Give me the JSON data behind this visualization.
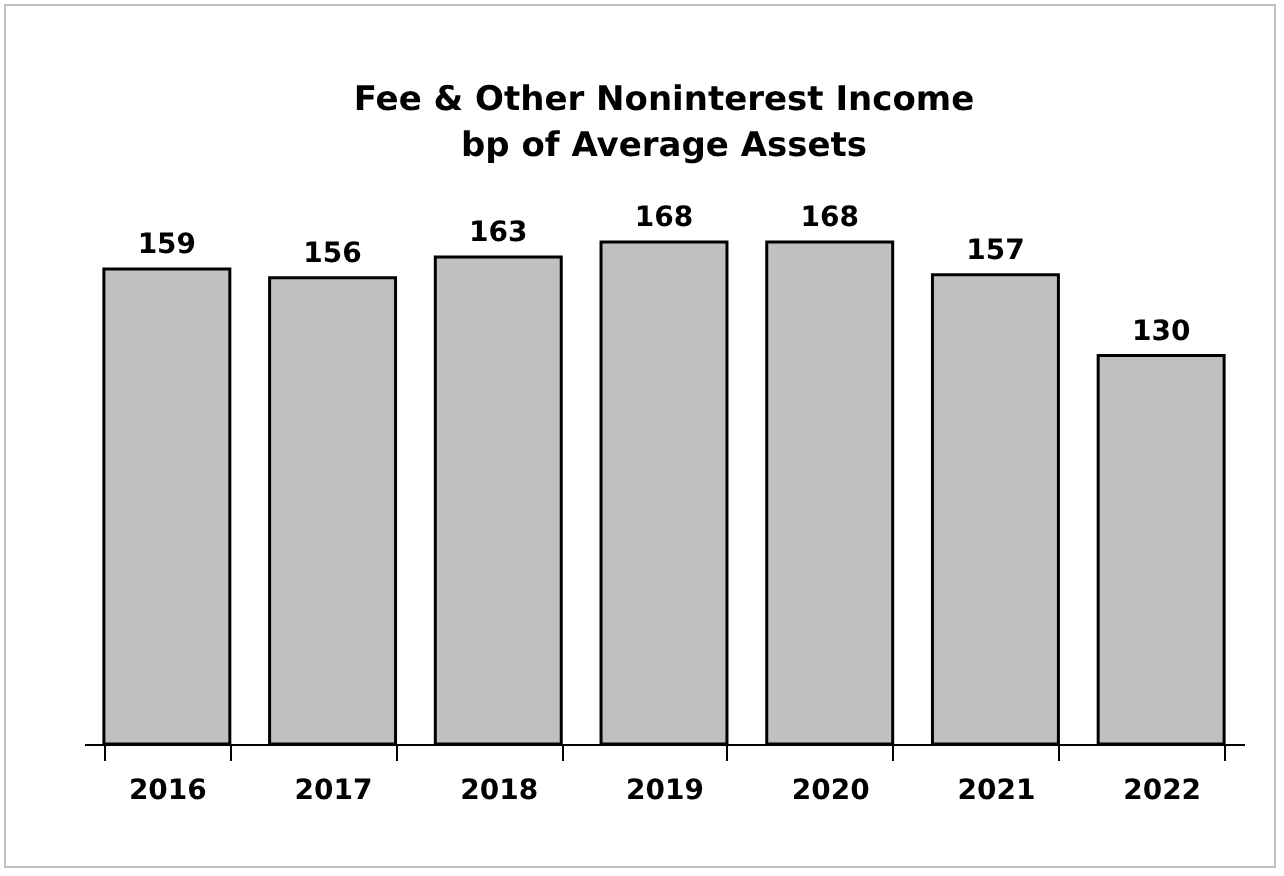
{
  "chart_data": {
    "type": "bar",
    "title": [
      "Fee & Other Noninterest Income",
      "bp of Average Assets"
    ],
    "categories": [
      "2016",
      "2017",
      "2018",
      "2019",
      "2020",
      "2021",
      "2022"
    ],
    "values": [
      159,
      156,
      163,
      168,
      168,
      157,
      130
    ],
    "color": "#c0c0c0",
    "data_labels": true
  }
}
